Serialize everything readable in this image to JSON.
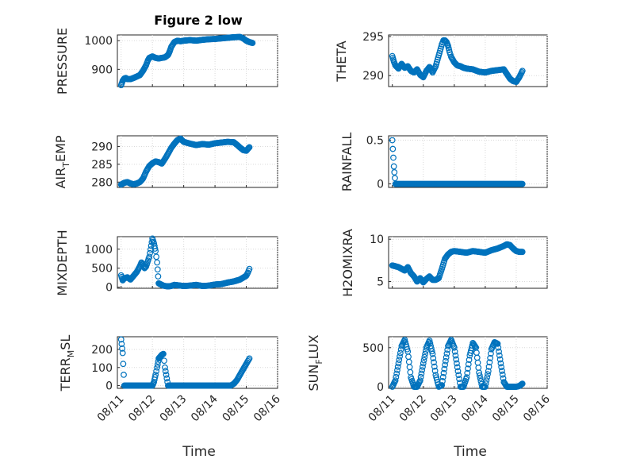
{
  "figure": {
    "title": "Figure 2 low",
    "marker_color": "#0072BD",
    "axis_color": "#262626"
  },
  "xaxis": {
    "ticks": [
      "08/11",
      "08/12",
      "08/13",
      "08/14",
      "08/15",
      "08/16"
    ],
    "label": "Time"
  },
  "chart_data": [
    {
      "type": "scatter",
      "ylabel": "PRESSURE",
      "yticks": [
        900,
        1000
      ],
      "ylim": [
        840,
        1020
      ],
      "x": [
        0,
        0.05,
        0.1,
        0.15,
        0.2,
        0.3,
        0.4,
        0.5,
        0.6,
        0.7,
        0.75,
        0.8,
        0.85,
        0.9,
        1.0,
        1.1,
        1.2,
        1.3,
        1.4,
        1.5,
        1.55,
        1.6,
        1.7,
        1.8,
        1.9,
        2.0,
        2.2,
        2.4,
        2.6,
        2.8,
        3.0,
        3.2,
        3.4,
        3.6,
        3.8,
        3.9,
        4.0,
        4.1,
        4.2
      ],
      "y": [
        845,
        860,
        868,
        870,
        866,
        866,
        870,
        875,
        880,
        895,
        905,
        915,
        930,
        940,
        945,
        940,
        938,
        940,
        942,
        950,
        962,
        978,
        995,
        1000,
        998,
        1000,
        1002,
        1000,
        1003,
        1005,
        1006,
        1008,
        1010,
        1012,
        1013,
        1008,
        1000,
        995,
        992
      ]
    },
    {
      "type": "scatter",
      "ylabel": "THETA",
      "yticks": [
        290,
        295
      ],
      "ylim": [
        288.6,
        295.2
      ],
      "x": [
        0,
        0.05,
        0.1,
        0.2,
        0.3,
        0.4,
        0.5,
        0.6,
        0.7,
        0.8,
        0.9,
        1.0,
        1.1,
        1.2,
        1.3,
        1.4,
        1.5,
        1.6,
        1.65,
        1.7,
        1.75,
        1.8,
        1.85,
        1.9,
        2.0,
        2.1,
        2.2,
        2.3,
        2.4,
        2.6,
        2.8,
        3.0,
        3.2,
        3.4,
        3.6,
        3.7,
        3.8,
        3.9,
        4.0,
        4.1,
        4.2
      ],
      "y": [
        292.5,
        291.8,
        291.3,
        290.9,
        291.5,
        291.0,
        291.2,
        290.6,
        290.4,
        290.8,
        290.1,
        289.8,
        290.6,
        291.1,
        290.4,
        291.2,
        292.6,
        294.0,
        294.5,
        294.5,
        294.3,
        293.8,
        293.0,
        292.4,
        291.7,
        291.3,
        291.2,
        291.0,
        290.9,
        290.8,
        290.5,
        290.4,
        290.6,
        290.7,
        290.8,
        290.2,
        289.6,
        289.3,
        289.2,
        289.8,
        290.6
      ]
    },
    {
      "type": "scatter",
      "ylabel": "AIR_TEMP",
      "yticks": [
        280,
        285,
        290
      ],
      "ylim": [
        278.5,
        293
      ],
      "x": [
        0,
        0.1,
        0.2,
        0.3,
        0.4,
        0.5,
        0.6,
        0.7,
        0.8,
        0.9,
        1.0,
        1.1,
        1.2,
        1.3,
        1.4,
        1.5,
        1.6,
        1.7,
        1.8,
        1.9,
        2.0,
        2.2,
        2.4,
        2.6,
        2.8,
        3.0,
        3.2,
        3.4,
        3.6,
        3.7,
        3.8,
        3.9,
        4.0,
        4.1
      ],
      "y": [
        279.3,
        279.8,
        280.0,
        279.6,
        279.4,
        279.6,
        280.0,
        281.0,
        283.0,
        284.5,
        285.3,
        285.8,
        285.6,
        285.2,
        286.5,
        288.0,
        289.6,
        290.8,
        291.8,
        292.2,
        291.3,
        290.8,
        290.4,
        290.7,
        290.5,
        290.9,
        291.1,
        291.3,
        291.2,
        290.5,
        289.7,
        289.0,
        288.8,
        289.8
      ]
    },
    {
      "type": "scatter",
      "ylabel": "RAINFALL",
      "yticks": [
        0,
        0.5
      ],
      "ylim": [
        -0.04,
        0.55
      ],
      "x": [
        0,
        0.05,
        0.1,
        0.3,
        0.5,
        0.7,
        0.9,
        1.1,
        1.3,
        1.5,
        1.7,
        1.9,
        2.1,
        2.3,
        2.5,
        2.7,
        2.9,
        3.1,
        3.3,
        3.5,
        3.7,
        3.9,
        4.1,
        4.2
      ],
      "y": [
        0.5,
        0.2,
        0,
        0,
        0,
        0,
        0,
        0,
        0,
        0,
        0,
        0,
        0,
        0,
        0,
        0,
        0,
        0,
        0,
        0,
        0,
        0,
        0,
        0
      ]
    },
    {
      "type": "scatter",
      "ylabel": "MIXDEPTH",
      "yticks": [
        0,
        500,
        1000
      ],
      "ylim": [
        -30,
        1330
      ],
      "x": [
        0,
        0.05,
        0.1,
        0.2,
        0.3,
        0.4,
        0.5,
        0.6,
        0.65,
        0.7,
        0.75,
        0.8,
        0.9,
        1.0,
        1.05,
        1.1,
        1.15,
        1.2,
        1.25,
        1.3,
        1.35,
        1.4,
        1.5,
        1.6,
        1.7,
        1.8,
        1.9,
        2.0,
        2.2,
        2.4,
        2.6,
        2.8,
        3.0,
        3.2,
        3.4,
        3.6,
        3.8,
        3.9,
        4.0,
        4.05,
        4.1
      ],
      "y": [
        310,
        180,
        230,
        260,
        200,
        300,
        400,
        550,
        650,
        600,
        500,
        550,
        800,
        1280,
        1150,
        950,
        650,
        100,
        80,
        60,
        40,
        30,
        20,
        30,
        60,
        50,
        40,
        30,
        40,
        60,
        30,
        40,
        70,
        80,
        120,
        150,
        200,
        250,
        300,
        380,
        480
      ]
    },
    {
      "type": "scatter",
      "ylabel": "H2OMIXRA",
      "yticks": [
        5,
        10
      ],
      "ylim": [
        4.2,
        10.3
      ],
      "x": [
        0,
        0.1,
        0.2,
        0.3,
        0.4,
        0.5,
        0.6,
        0.7,
        0.8,
        0.9,
        1.0,
        1.1,
        1.2,
        1.3,
        1.4,
        1.5,
        1.6,
        1.7,
        1.8,
        1.9,
        2.0,
        2.2,
        2.4,
        2.6,
        2.8,
        3.0,
        3.2,
        3.4,
        3.6,
        3.7,
        3.8,
        3.9,
        4.0,
        4.1,
        4.2
      ],
      "y": [
        6.9,
        6.8,
        6.7,
        6.5,
        6.3,
        6.7,
        6.0,
        5.6,
        5.0,
        5.4,
        4.9,
        5.3,
        5.6,
        5.2,
        5.2,
        5.4,
        6.5,
        7.7,
        8.2,
        8.5,
        8.6,
        8.5,
        8.4,
        8.6,
        8.5,
        8.4,
        8.7,
        8.9,
        9.2,
        9.4,
        9.3,
        8.9,
        8.6,
        8.5,
        8.5
      ]
    },
    {
      "type": "scatter",
      "ylabel": "TERR_MSL",
      "yticks": [
        0,
        100,
        200
      ],
      "ylim": [
        -15,
        270
      ],
      "x": [
        0,
        0.05,
        0.1,
        0.2,
        0.4,
        0.6,
        0.8,
        1.0,
        1.05,
        1.1,
        1.15,
        1.2,
        1.25,
        1.3,
        1.35,
        1.4,
        1.5,
        1.7,
        1.9,
        2.1,
        2.3,
        2.5,
        2.7,
        2.9,
        3.1,
        3.3,
        3.5,
        3.6,
        3.7,
        3.8,
        3.9,
        4.0,
        4.05,
        4.1
      ],
      "y": [
        255,
        180,
        0,
        0,
        0,
        0,
        0,
        0,
        20,
        60,
        100,
        150,
        160,
        170,
        175,
        100,
        0,
        0,
        0,
        0,
        0,
        0,
        0,
        0,
        0,
        0,
        0,
        10,
        30,
        60,
        90,
        120,
        135,
        150
      ]
    },
    {
      "type": "scatter",
      "ylabel": "SUN_FLUX",
      "yticks": [
        0,
        500
      ],
      "ylim": [
        -20,
        640
      ],
      "x": [
        0,
        0.1,
        0.2,
        0.3,
        0.4,
        0.5,
        0.6,
        0.7,
        0.8,
        0.9,
        1.0,
        1.1,
        1.2,
        1.3,
        1.4,
        1.5,
        1.6,
        1.7,
        1.8,
        1.9,
        2.0,
        2.1,
        2.2,
        2.3,
        2.4,
        2.5,
        2.6,
        2.7,
        2.8,
        2.9,
        3.0,
        3.1,
        3.2,
        3.3,
        3.4,
        3.5,
        3.6,
        3.7,
        3.8,
        3.9,
        4.0,
        4.1,
        4.2
      ],
      "y": [
        0,
        80,
        300,
        520,
        600,
        450,
        120,
        0,
        0,
        80,
        300,
        500,
        590,
        420,
        150,
        0,
        20,
        280,
        520,
        600,
        500,
        250,
        0,
        0,
        120,
        400,
        560,
        500,
        180,
        0,
        0,
        200,
        480,
        570,
        550,
        300,
        60,
        0,
        0,
        0,
        0,
        10,
        40
      ]
    }
  ]
}
